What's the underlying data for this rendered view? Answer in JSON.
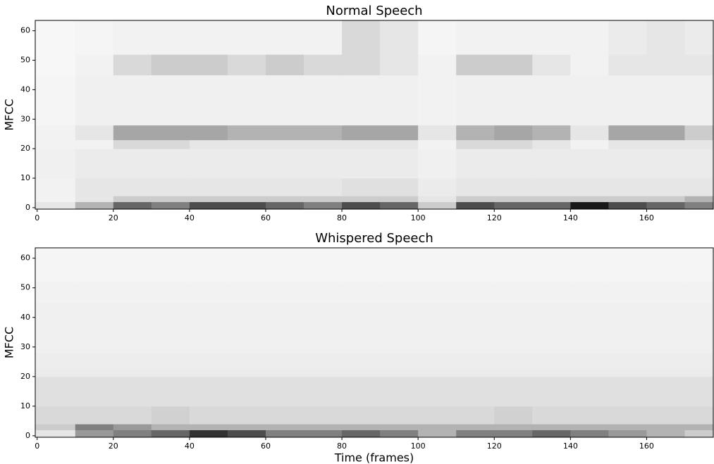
{
  "chart_data": [
    {
      "type": "heatmap",
      "title": "Normal Speech",
      "ylabel": "MFCC",
      "colormap": "Greys",
      "xlim": [
        -0.5,
        177.5
      ],
      "ylim": [
        -0.5,
        63.5
      ],
      "xticks": [
        0,
        20,
        40,
        60,
        80,
        100,
        120,
        140,
        160
      ],
      "yticks": [
        0,
        10,
        20,
        30,
        40,
        50,
        60
      ],
      "x_bins": [
        -0.5,
        10,
        20,
        30,
        40,
        50,
        60,
        70,
        80,
        90,
        100,
        110,
        120,
        130,
        140,
        150,
        160,
        170,
        177.5
      ],
      "y_bins": [
        -0.5,
        2,
        4,
        10,
        20,
        23,
        28,
        45,
        52,
        63.5
      ],
      "values": [
        [
          0.1,
          0.3,
          0.6,
          0.5,
          0.7,
          0.7,
          0.6,
          0.5,
          0.7,
          0.6,
          0.2,
          0.7,
          0.6,
          0.6,
          0.9,
          0.7,
          0.6,
          0.5
        ],
        [
          0.05,
          0.1,
          0.2,
          0.2,
          0.2,
          0.2,
          0.2,
          0.2,
          0.2,
          0.2,
          0.1,
          0.2,
          0.2,
          0.2,
          0.2,
          0.2,
          0.2,
          0.3
        ],
        [
          0.05,
          0.1,
          0.1,
          0.1,
          0.1,
          0.1,
          0.1,
          0.1,
          0.12,
          0.12,
          0.08,
          0.1,
          0.1,
          0.1,
          0.1,
          0.1,
          0.1,
          0.1
        ],
        [
          0.06,
          0.08,
          0.08,
          0.08,
          0.08,
          0.08,
          0.08,
          0.08,
          0.08,
          0.08,
          0.06,
          0.08,
          0.08,
          0.08,
          0.08,
          0.08,
          0.08,
          0.08
        ],
        [
          0.05,
          0.05,
          0.15,
          0.15,
          0.1,
          0.1,
          0.1,
          0.1,
          0.1,
          0.1,
          0.05,
          0.15,
          0.15,
          0.1,
          0.05,
          0.1,
          0.1,
          0.1
        ],
        [
          0.05,
          0.1,
          0.35,
          0.35,
          0.35,
          0.3,
          0.3,
          0.3,
          0.35,
          0.35,
          0.1,
          0.3,
          0.35,
          0.3,
          0.1,
          0.35,
          0.35,
          0.2
        ],
        [
          0.04,
          0.06,
          0.06,
          0.06,
          0.06,
          0.06,
          0.06,
          0.06,
          0.06,
          0.06,
          0.05,
          0.06,
          0.06,
          0.06,
          0.06,
          0.06,
          0.06,
          0.06
        ],
        [
          0.03,
          0.05,
          0.15,
          0.2,
          0.2,
          0.15,
          0.2,
          0.15,
          0.15,
          0.1,
          0.05,
          0.2,
          0.2,
          0.1,
          0.05,
          0.1,
          0.1,
          0.1
        ],
        [
          0.03,
          0.04,
          0.05,
          0.05,
          0.05,
          0.05,
          0.05,
          0.05,
          0.15,
          0.1,
          0.04,
          0.05,
          0.05,
          0.05,
          0.05,
          0.08,
          0.1,
          0.08
        ]
      ]
    },
    {
      "type": "heatmap",
      "title": "Whispered Speech",
      "ylabel": "MFCC",
      "xlabel": "Time (frames)",
      "colormap": "Greys",
      "xlim": [
        -0.5,
        177.5
      ],
      "ylim": [
        -0.5,
        63.5
      ],
      "xticks": [
        0,
        20,
        40,
        60,
        80,
        100,
        120,
        140,
        160
      ],
      "yticks": [
        0,
        10,
        20,
        30,
        40,
        50,
        60
      ],
      "x_bins": [
        -0.5,
        10,
        20,
        30,
        40,
        50,
        60,
        70,
        80,
        90,
        100,
        110,
        120,
        130,
        140,
        150,
        160,
        170,
        177.5
      ],
      "y_bins": [
        -0.5,
        2,
        4,
        10,
        20,
        23,
        28,
        45,
        52,
        63.5
      ],
      "values": [
        [
          0.1,
          0.4,
          0.5,
          0.6,
          0.8,
          0.7,
          0.5,
          0.5,
          0.6,
          0.5,
          0.3,
          0.5,
          0.5,
          0.6,
          0.5,
          0.4,
          0.3,
          0.2
        ],
        [
          0.2,
          0.5,
          0.4,
          0.3,
          0.3,
          0.3,
          0.3,
          0.3,
          0.3,
          0.3,
          0.3,
          0.3,
          0.3,
          0.3,
          0.3,
          0.3,
          0.3,
          0.3
        ],
        [
          0.15,
          0.15,
          0.15,
          0.18,
          0.15,
          0.15,
          0.15,
          0.15,
          0.15,
          0.15,
          0.15,
          0.15,
          0.18,
          0.15,
          0.15,
          0.15,
          0.15,
          0.15
        ],
        [
          0.12,
          0.12,
          0.12,
          0.12,
          0.12,
          0.12,
          0.12,
          0.12,
          0.12,
          0.12,
          0.12,
          0.12,
          0.12,
          0.12,
          0.12,
          0.12,
          0.12,
          0.12
        ],
        [
          0.08,
          0.08,
          0.08,
          0.08,
          0.08,
          0.08,
          0.08,
          0.08,
          0.08,
          0.08,
          0.08,
          0.08,
          0.08,
          0.08,
          0.08,
          0.08,
          0.08,
          0.08
        ],
        [
          0.07,
          0.07,
          0.07,
          0.07,
          0.07,
          0.07,
          0.07,
          0.07,
          0.07,
          0.07,
          0.07,
          0.07,
          0.07,
          0.07,
          0.07,
          0.07,
          0.07,
          0.07
        ],
        [
          0.06,
          0.06,
          0.06,
          0.06,
          0.06,
          0.06,
          0.06,
          0.06,
          0.06,
          0.06,
          0.06,
          0.06,
          0.06,
          0.06,
          0.06,
          0.06,
          0.06,
          0.06
        ],
        [
          0.05,
          0.05,
          0.05,
          0.05,
          0.05,
          0.05,
          0.05,
          0.05,
          0.05,
          0.05,
          0.05,
          0.05,
          0.05,
          0.05,
          0.05,
          0.05,
          0.05,
          0.05
        ],
        [
          0.04,
          0.04,
          0.04,
          0.04,
          0.04,
          0.04,
          0.04,
          0.04,
          0.04,
          0.04,
          0.04,
          0.04,
          0.04,
          0.04,
          0.04,
          0.04,
          0.04,
          0.04
        ]
      ]
    }
  ]
}
